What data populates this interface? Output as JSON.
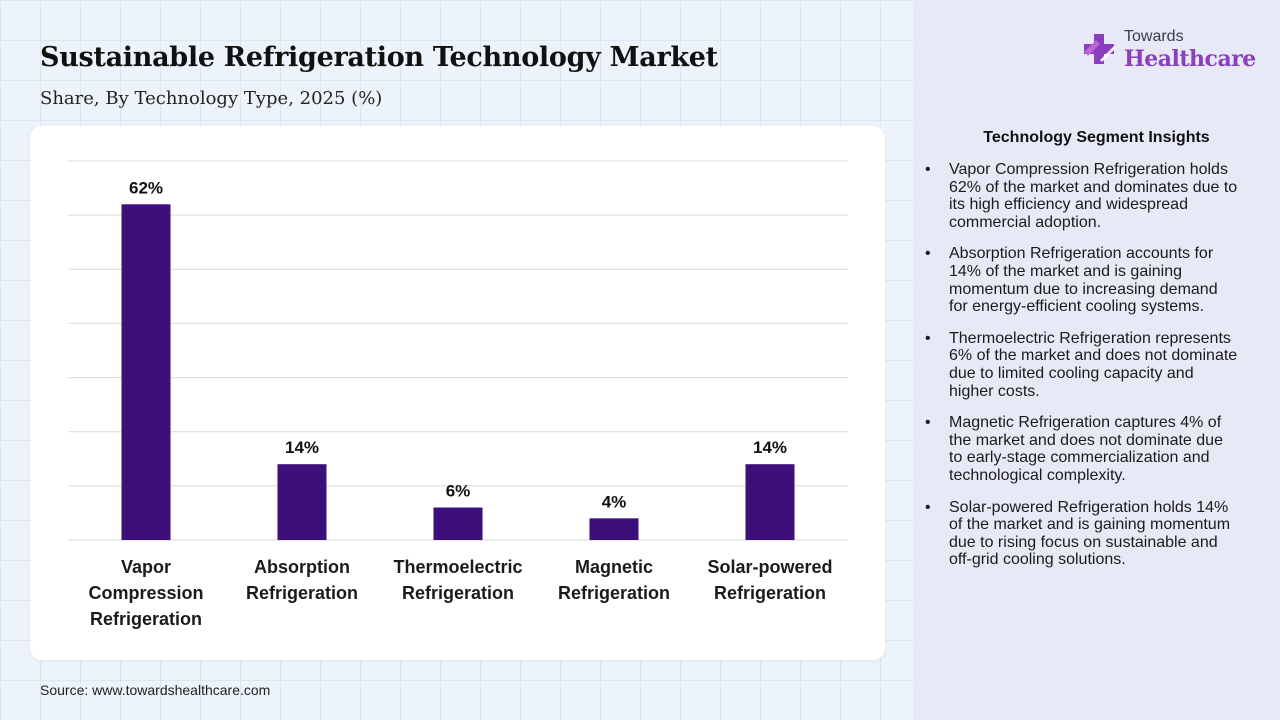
{
  "title": "Sustainable Refrigeration Technology Market",
  "subtitle": "Share, By Technology Type, 2025 (%)",
  "source": "Source: www.towardshealthcare.com",
  "logo": {
    "line1": "Towards",
    "line2": "Healthcare"
  },
  "insights": {
    "title": "Technology Segment Insights",
    "items": [
      "Vapor Compression Refrigeration holds 62% of the market and dominates due to its high efficiency and widespread commercial adoption.",
      "Absorption Refrigeration accounts for 14% of the market and is gaining momentum due to increasing demand for energy-efficient cooling systems.",
      "Thermoelectric Refrigeration represents 6% of the market and does not dominate due to limited cooling capacity and higher costs.",
      "Magnetic Refrigeration captures 4% of the market and does not dominate due to early-stage commercialization and technological complexity.",
      "Solar-powered Refrigeration holds 14% of the market and is gaining momentum due to rising focus on sustainable and off-grid cooling solutions."
    ]
  },
  "colors": {
    "bar": "#3d0f7a",
    "grid": "#d9d9d9",
    "logo_accent": "#8a3fbf"
  },
  "chart_data": {
    "type": "bar",
    "title": "Sustainable Refrigeration Technology Market",
    "subtitle": "Share, By Technology Type, 2025 (%)",
    "categories": [
      [
        "Vapor",
        "Compression",
        "Refrigeration"
      ],
      [
        "Absorption",
        "Refrigeration"
      ],
      [
        "Thermoelectric",
        "Refrigeration"
      ],
      [
        "Magnetic",
        "Refrigeration"
      ],
      [
        "Solar-powered",
        "Refrigeration"
      ]
    ],
    "values": [
      62,
      14,
      6,
      4,
      14
    ],
    "labels": [
      "62%",
      "14%",
      "6%",
      "4%",
      "14%"
    ],
    "unit": "%",
    "xlabel": "",
    "ylabel": "",
    "ylim": [
      0,
      70
    ],
    "grid": true,
    "legend": "none"
  }
}
